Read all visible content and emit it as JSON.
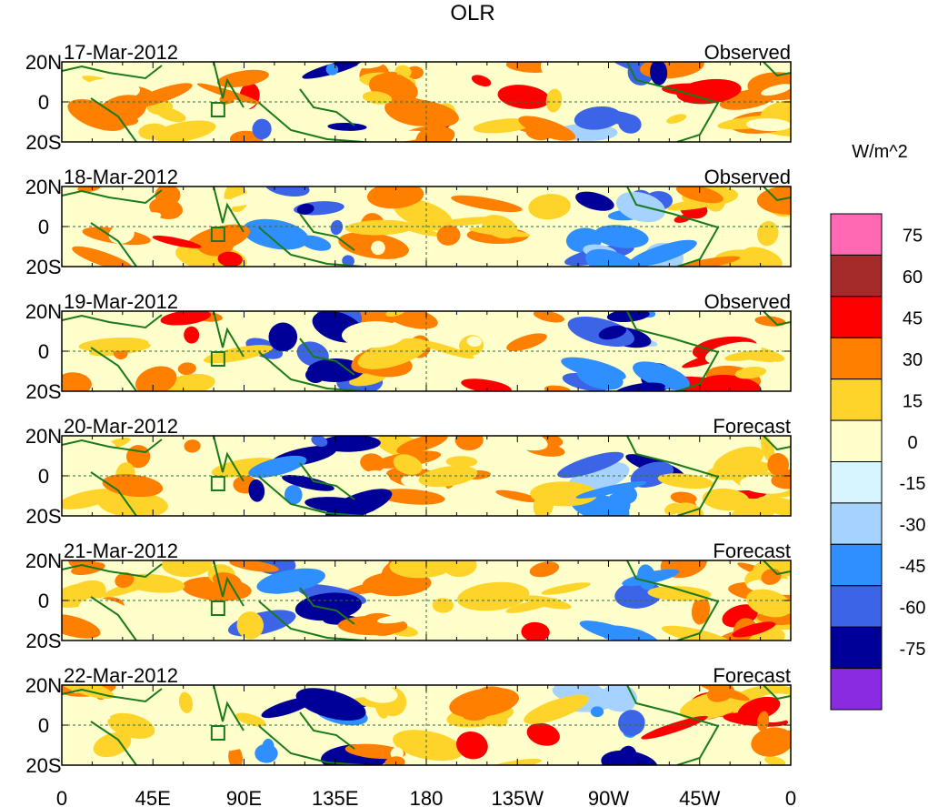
{
  "chart_data": {
    "type": "heatmap",
    "title": "OLR",
    "units_label": "W/m^2",
    "x_axis": {
      "ticks": [
        "0",
        "45E",
        "90E",
        "135E",
        "180",
        "135W",
        "90W",
        "45W",
        "0"
      ],
      "range_deg": [
        0,
        360
      ]
    },
    "y_axis": {
      "ticks": [
        "20N",
        "0",
        "20S"
      ],
      "range_deg": [
        -20,
        20
      ]
    },
    "panels": [
      {
        "date": "17-Mar-2012",
        "kind": "Observed"
      },
      {
        "date": "18-Mar-2012",
        "kind": "Observed"
      },
      {
        "date": "19-Mar-2012",
        "kind": "Observed"
      },
      {
        "date": "20-Mar-2012",
        "kind": "Forecast"
      },
      {
        "date": "21-Mar-2012",
        "kind": "Forecast"
      },
      {
        "date": "22-Mar-2012",
        "kind": "Forecast"
      }
    ],
    "colorbar": {
      "levels": [
        "75",
        "60",
        "45",
        "30",
        "15",
        "0",
        "-15",
        "-30",
        "-45",
        "-60",
        "-75"
      ],
      "colors": [
        "#ff69b4",
        "#a52a2a",
        "#ff0000",
        "#ff7f00",
        "#ffd42a",
        "#ffffcc",
        "#d7f5ff",
        "#a6d2ff",
        "#2f8fff",
        "#3c64e6",
        "#000099",
        "#8a2be2"
      ]
    }
  }
}
